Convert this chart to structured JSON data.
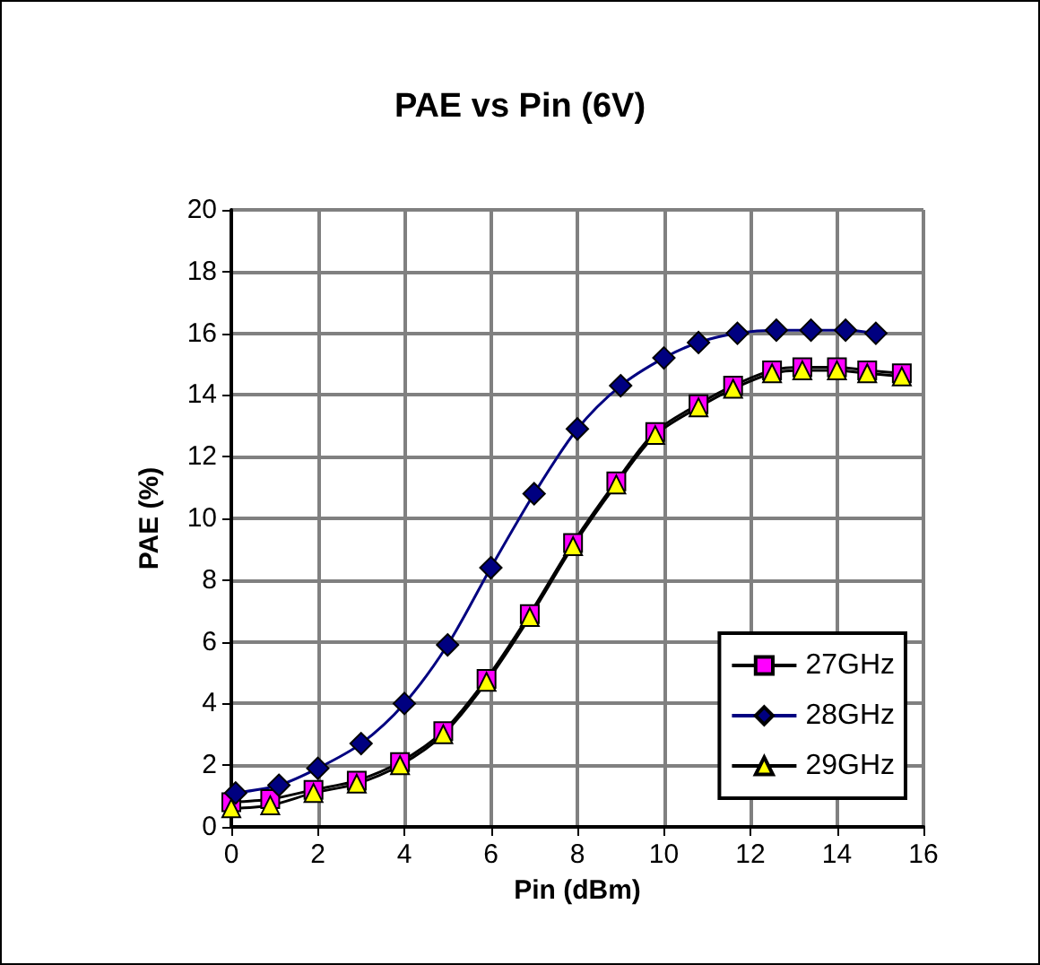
{
  "chart_data": {
    "type": "line",
    "title": "PAE vs Pin (6V)",
    "xlabel": "Pin (dBm)",
    "ylabel": "PAE (%)",
    "xlim": [
      0,
      16
    ],
    "xticks": [
      0,
      2,
      4,
      6,
      8,
      10,
      12,
      14,
      16
    ],
    "ylim": [
      0,
      20
    ],
    "yticks": [
      0,
      2,
      4,
      6,
      8,
      10,
      12,
      14,
      16,
      18,
      20
    ],
    "grid": true,
    "legend": "bottom right",
    "series": [
      {
        "name": "27GHz",
        "color": "#ff00ff",
        "marker": "square",
        "x": [
          0,
          0.9,
          1.9,
          2.9,
          3.9,
          4.9,
          5.9,
          6.9,
          7.9,
          8.9,
          9.8,
          10.8,
          11.6,
          12.5,
          13.2,
          14.0,
          14.7,
          15.5
        ],
        "values": [
          0.8,
          0.9,
          1.2,
          1.5,
          2.1,
          3.1,
          4.8,
          6.9,
          9.2,
          11.2,
          12.8,
          13.7,
          14.3,
          14.8,
          14.9,
          14.9,
          14.8,
          14.7
        ]
      },
      {
        "name": "28GHz",
        "color": "#000080",
        "marker": "diamond",
        "x": [
          0.1,
          1.1,
          2.0,
          3.0,
          4.0,
          5.0,
          6.0,
          7.0,
          8.0,
          9.0,
          10.0,
          10.8,
          11.7,
          12.6,
          13.4,
          14.2,
          14.9
        ],
        "values": [
          1.1,
          1.35,
          1.9,
          2.7,
          4.0,
          5.9,
          8.4,
          10.8,
          12.9,
          14.3,
          15.2,
          15.7,
          16.0,
          16.1,
          16.1,
          16.1,
          16.0
        ]
      },
      {
        "name": "29GHz",
        "color": "#ffff00",
        "marker": "triangle",
        "x": [
          0,
          0.9,
          1.9,
          2.9,
          3.9,
          4.9,
          5.9,
          6.9,
          7.9,
          8.9,
          9.8,
          10.8,
          11.6,
          12.5,
          13.2,
          14.0,
          14.7,
          15.5
        ],
        "values": [
          0.6,
          0.7,
          1.1,
          1.4,
          2.0,
          3.0,
          4.7,
          6.8,
          9.1,
          11.1,
          12.7,
          13.6,
          14.2,
          14.7,
          14.8,
          14.8,
          14.7,
          14.6
        ]
      }
    ]
  }
}
